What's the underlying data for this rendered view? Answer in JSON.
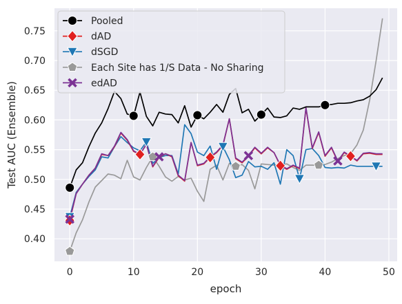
{
  "chart_data": {
    "type": "line",
    "xlabel": "epoch",
    "ylabel": "Test AUC (Ensemble)",
    "xlim": [
      -2.4,
      51.3
    ],
    "ylim": [
      0.362,
      0.788
    ],
    "x_ticks": [
      0,
      10,
      20,
      30,
      40,
      50
    ],
    "y_ticks": [
      0.4,
      0.45,
      0.5,
      0.55,
      0.6,
      0.65,
      0.7,
      0.75
    ],
    "x_tick_labels": [
      "0",
      "10",
      "20",
      "30",
      "40",
      "50"
    ],
    "y_tick_labels": [
      "0.40",
      "0.45",
      "0.50",
      "0.55",
      "0.60",
      "0.65",
      "0.70",
      "0.75"
    ],
    "grid": true,
    "legend_position": "top-left",
    "series": [
      {
        "name": "Pooled",
        "color": "#000000",
        "marker": "circle",
        "marker_every": 10,
        "x": [
          0,
          1,
          2,
          3,
          4,
          5,
          6,
          7,
          8,
          9,
          10,
          11,
          12,
          13,
          14,
          15,
          16,
          17,
          18,
          19,
          20,
          21,
          22,
          23,
          24,
          25,
          26,
          27,
          28,
          29,
          30,
          31,
          32,
          33,
          34,
          35,
          36,
          37,
          38,
          39,
          40,
          41,
          42,
          43,
          44,
          45,
          46,
          47,
          48,
          49
        ],
        "values": [
          0.486,
          0.516,
          0.528,
          0.555,
          0.578,
          0.595,
          0.619,
          0.648,
          0.636,
          0.61,
          0.607,
          0.647,
          0.606,
          0.59,
          0.613,
          0.61,
          0.609,
          0.595,
          0.624,
          0.588,
          0.608,
          0.602,
          0.613,
          0.626,
          0.613,
          0.643,
          0.653,
          0.612,
          0.618,
          0.598,
          0.609,
          0.62,
          0.605,
          0.604,
          0.607,
          0.62,
          0.618,
          0.622,
          0.622,
          0.622,
          0.625,
          0.626,
          0.628,
          0.628,
          0.629,
          0.632,
          0.634,
          0.64,
          0.651,
          0.671
        ]
      },
      {
        "name": "dAD",
        "color": "#e02020",
        "marker": "diamond",
        "marker_x": [
          0,
          11,
          22,
          33,
          44
        ],
        "x": [
          0,
          1,
          2,
          3,
          4,
          5,
          6,
          7,
          8,
          9,
          10,
          11,
          12,
          13,
          14,
          15,
          16,
          17,
          18,
          19,
          20,
          21,
          22,
          23,
          24,
          25,
          26,
          27,
          28,
          29,
          30,
          31,
          32,
          33,
          34,
          35,
          36,
          37,
          38,
          39,
          40,
          41,
          42,
          43,
          44,
          45,
          46,
          47,
          48,
          49
        ],
        "values": [
          0.431,
          0.476,
          0.492,
          0.507,
          0.519,
          0.542,
          0.54,
          0.555,
          0.578,
          0.566,
          0.547,
          0.542,
          0.559,
          0.521,
          0.537,
          0.543,
          0.538,
          0.506,
          0.497,
          0.562,
          0.523,
          0.526,
          0.537,
          0.545,
          0.557,
          0.602,
          0.535,
          0.528,
          0.539,
          0.553,
          0.543,
          0.553,
          0.545,
          0.523,
          0.517,
          0.523,
          0.518,
          0.62,
          0.552,
          0.579,
          0.539,
          0.553,
          0.53,
          0.545,
          0.539,
          0.531,
          0.543,
          0.544,
          0.542,
          0.542
        ]
      },
      {
        "name": "dSGD",
        "color": "#1f77b4",
        "marker": "triangle-down",
        "marker_x": [
          0,
          12,
          24,
          36,
          48
        ],
        "x": [
          0,
          1,
          2,
          3,
          4,
          5,
          6,
          7,
          8,
          9,
          10,
          11,
          12,
          13,
          14,
          15,
          16,
          17,
          18,
          19,
          20,
          21,
          22,
          23,
          24,
          25,
          26,
          27,
          28,
          29,
          30,
          31,
          32,
          33,
          34,
          35,
          36,
          37,
          38,
          39,
          40,
          41,
          42,
          43,
          44,
          45,
          46,
          47,
          48,
          49
        ],
        "values": [
          0.437,
          0.478,
          0.492,
          0.505,
          0.516,
          0.538,
          0.536,
          0.555,
          0.572,
          0.562,
          0.553,
          0.548,
          0.563,
          0.527,
          0.537,
          0.54,
          0.54,
          0.509,
          0.592,
          0.577,
          0.546,
          0.54,
          0.556,
          0.517,
          0.555,
          0.533,
          0.503,
          0.507,
          0.53,
          0.521,
          0.522,
          0.517,
          0.528,
          0.492,
          0.55,
          0.54,
          0.501,
          0.55,
          0.552,
          0.54,
          0.52,
          0.519,
          0.52,
          0.519,
          0.524,
          0.522,
          0.522,
          0.522,
          0.522,
          0.522
        ]
      },
      {
        "name": "Each Site has 1/S Data - No Sharing",
        "color": "#999999",
        "marker": "pentagon",
        "marker_x": [
          0,
          13,
          26,
          39
        ],
        "x": [
          0,
          1,
          2,
          3,
          4,
          5,
          6,
          7,
          8,
          9,
          10,
          11,
          12,
          13,
          14,
          15,
          16,
          17,
          18,
          19,
          20,
          21,
          22,
          23,
          24,
          25,
          26,
          27,
          28,
          29,
          30,
          31,
          32,
          33,
          34,
          35,
          36,
          37,
          38,
          39,
          40,
          41,
          42,
          43,
          44,
          45,
          46,
          47,
          48,
          49
        ],
        "values": [
          0.379,
          0.41,
          0.432,
          0.462,
          0.487,
          0.498,
          0.509,
          0.507,
          0.501,
          0.532,
          0.504,
          0.499,
          0.52,
          0.538,
          0.522,
          0.504,
          0.497,
          0.505,
          0.499,
          0.502,
          0.48,
          0.463,
          0.517,
          0.524,
          0.499,
          0.527,
          0.522,
          0.525,
          0.515,
          0.484,
          0.526,
          0.525,
          0.524,
          0.525,
          0.526,
          0.52,
          0.515,
          0.524,
          0.524,
          0.524,
          0.525,
          0.529,
          0.535,
          0.54,
          0.543,
          0.558,
          0.583,
          0.634,
          0.7,
          0.771
        ]
      },
      {
        "name": "edAD",
        "color": "#7b3294",
        "marker": "x",
        "marker_x": [
          0,
          14,
          28,
          42
        ],
        "x": [
          0,
          1,
          2,
          3,
          4,
          5,
          6,
          7,
          8,
          9,
          10,
          11,
          12,
          13,
          14,
          15,
          16,
          17,
          18,
          19,
          20,
          21,
          22,
          23,
          24,
          25,
          26,
          27,
          28,
          29,
          30,
          31,
          32,
          33,
          34,
          35,
          36,
          37,
          38,
          39,
          40,
          41,
          42,
          43,
          44,
          45,
          46,
          47,
          48,
          49
        ],
        "values": [
          0.433,
          0.476,
          0.492,
          0.507,
          0.519,
          0.543,
          0.54,
          0.556,
          0.579,
          0.567,
          0.548,
          0.542,
          0.559,
          0.522,
          0.538,
          0.543,
          0.539,
          0.507,
          0.498,
          0.562,
          0.524,
          0.527,
          0.538,
          0.546,
          0.558,
          0.602,
          0.536,
          0.529,
          0.54,
          0.554,
          0.544,
          0.554,
          0.545,
          0.524,
          0.518,
          0.524,
          0.519,
          0.621,
          0.553,
          0.58,
          0.54,
          0.554,
          0.531,
          0.546,
          0.539,
          0.532,
          0.544,
          0.545,
          0.543,
          0.543
        ]
      }
    ]
  }
}
